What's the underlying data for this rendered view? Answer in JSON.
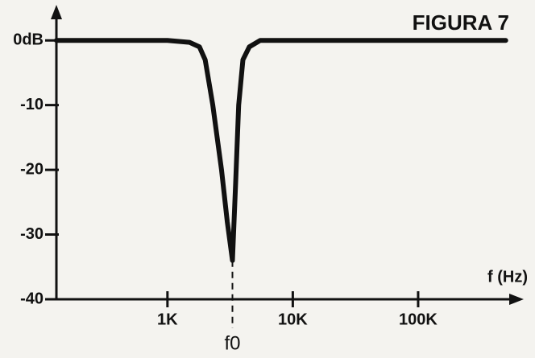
{
  "chart_data": {
    "type": "line",
    "title": "FIGURA 7",
    "x_label": "f (Hz)",
    "log_x": true,
    "grid": false,
    "x": [
      130,
      1000,
      1500,
      1800,
      2000,
      2300,
      2700,
      3000,
      3300,
      3500,
      3700,
      4000,
      4500,
      5500,
      10000,
      100000,
      500000
    ],
    "series": [
      {
        "color": "#111111",
        "values": [
          0,
          0,
          -0.3,
          -1,
          -3,
          -10,
          -20,
          -28,
          -34,
          -22,
          -10,
          -3,
          -1,
          0,
          0,
          0,
          0
        ]
      }
    ],
    "xlim": [
      130,
      600000
    ],
    "xticks": [
      {
        "value": 1000,
        "label": "1K"
      },
      {
        "value": 10000,
        "label": "10K"
      },
      {
        "value": 100000,
        "label": "100K"
      }
    ],
    "ylim": [
      -40,
      5
    ],
    "yticks": [
      {
        "value": 0,
        "label": "0dB"
      },
      -10,
      -20,
      -30,
      -40
    ],
    "annotations": [
      {
        "text": "f0",
        "x": 3300
      }
    ]
  }
}
